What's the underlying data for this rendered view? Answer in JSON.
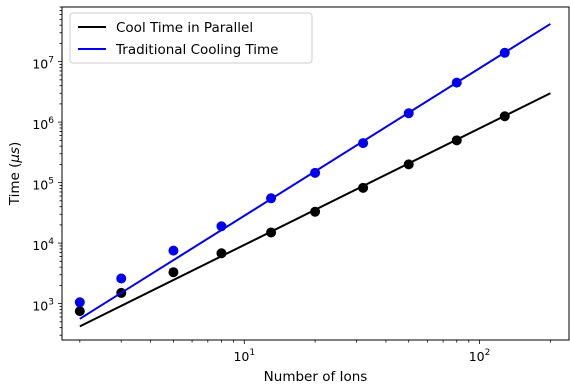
{
  "chart_data": {
    "type": "line",
    "title": "",
    "xlabel": "Number of Ions",
    "ylabel": {
      "prefix": "Time (",
      "symbol": "μs",
      "suffix": ")"
    },
    "xscale": "log",
    "yscale": "log",
    "xlim": [
      1.68,
      240
    ],
    "ylim": [
      250,
      80000000
    ],
    "x_tick_labels": [
      {
        "value": 10,
        "base": "10",
        "exp": "1"
      },
      {
        "value": 100,
        "base": "10",
        "exp": "2"
      }
    ],
    "y_tick_labels": [
      {
        "value": 1000,
        "base": "10",
        "exp": "3"
      },
      {
        "value": 10000,
        "base": "10",
        "exp": "4"
      },
      {
        "value": 100000,
        "base": "10",
        "exp": "5"
      },
      {
        "value": 1000000,
        "base": "10",
        "exp": "6"
      },
      {
        "value": 10000000,
        "base": "10",
        "exp": "7"
      }
    ],
    "grid": false,
    "legend_position": "top-left",
    "series": [
      {
        "name": "Cool Time in Parallel",
        "color": "#000000",
        "line": {
          "x": [
            2,
            200
          ],
          "y": [
            420,
            3000000
          ]
        },
        "points": {
          "x": [
            2,
            3,
            5,
            8,
            13,
            20,
            32,
            50,
            80,
            128
          ],
          "y": [
            750,
            1500,
            3300,
            6800,
            15000,
            33000,
            82000,
            200000,
            500000,
            1250000
          ]
        }
      },
      {
        "name": "Traditional Cooling Time",
        "color": "#0000ee",
        "line": {
          "x": [
            2,
            200
          ],
          "y": [
            560,
            42000000
          ]
        },
        "points": {
          "x": [
            2,
            3,
            5,
            8,
            13,
            20,
            32,
            50,
            80,
            128
          ],
          "y": [
            1050,
            2600,
            7500,
            19000,
            55000,
            145000,
            450000,
            1400000,
            4500000,
            14000000
          ]
        }
      }
    ]
  }
}
